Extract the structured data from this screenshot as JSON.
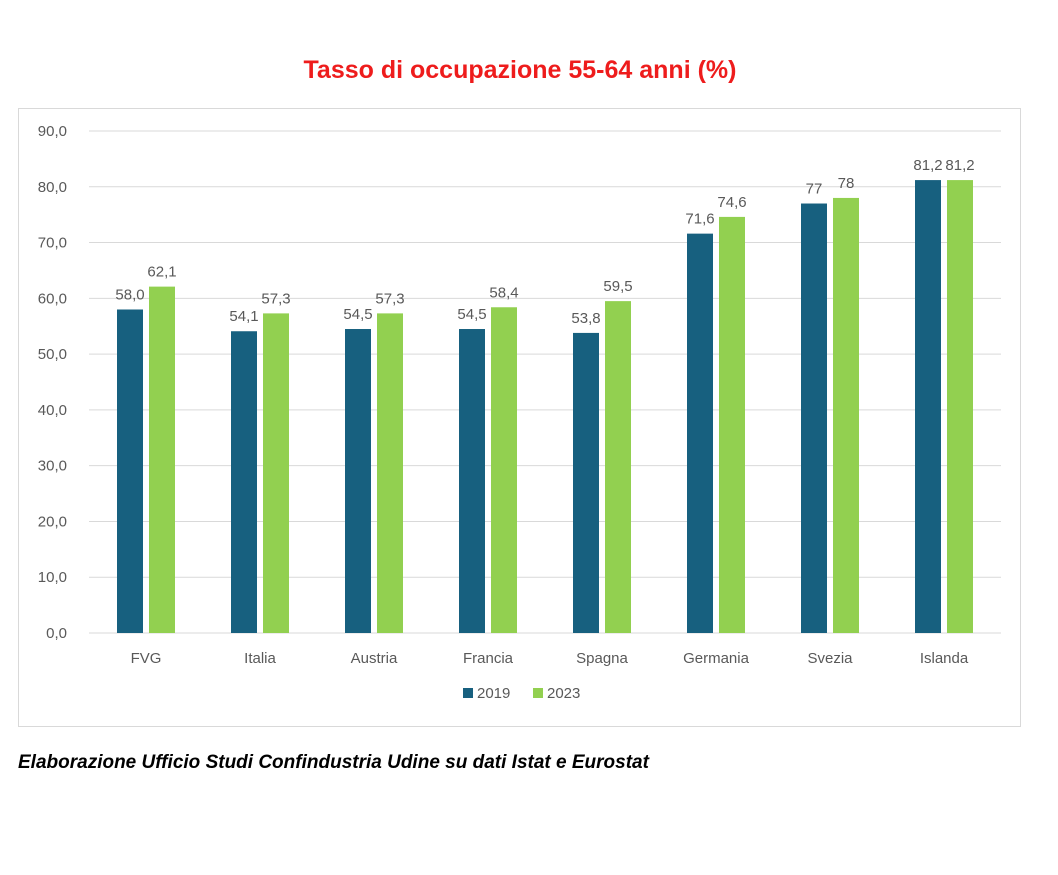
{
  "title": "Tasso di occupazione 55-64 anni (%)",
  "caption": "Elaborazione Ufficio Studi Confindustria Udine su dati Istat e Eurostat",
  "colors": {
    "title": "#ee1c1c",
    "series_2019": "#17607f",
    "series_2023": "#92d050",
    "grid": "#d9d9d9",
    "text": "#595959"
  },
  "chart_data": {
    "type": "bar",
    "title": "Tasso di occupazione 55-64 anni (%)",
    "categories": [
      "FVG",
      "Italia",
      "Austria",
      "Francia",
      "Spagna",
      "Germania",
      "Svezia",
      "Islanda"
    ],
    "series": [
      {
        "name": "2019",
        "values": [
          58.0,
          54.1,
          54.5,
          54.5,
          53.8,
          71.6,
          77,
          81.2
        ],
        "labels": [
          "58,0",
          "54,1",
          "54,5",
          "54,5",
          "53,8",
          "71,6",
          "77",
          "81,2"
        ]
      },
      {
        "name": "2023",
        "values": [
          62.1,
          57.3,
          57.3,
          58.4,
          59.5,
          74.6,
          78,
          81.2
        ],
        "labels": [
          "62,1",
          "57,3",
          "57,3",
          "58,4",
          "59,5",
          "74,6",
          "78",
          "81,2"
        ]
      }
    ],
    "yticks": [
      "0,0",
      "10,0",
      "20,0",
      "30,0",
      "40,0",
      "50,0",
      "60,0",
      "70,0",
      "80,0",
      "90,0"
    ],
    "ylim": [
      0,
      90
    ],
    "grid": true,
    "legend": "bottom"
  }
}
